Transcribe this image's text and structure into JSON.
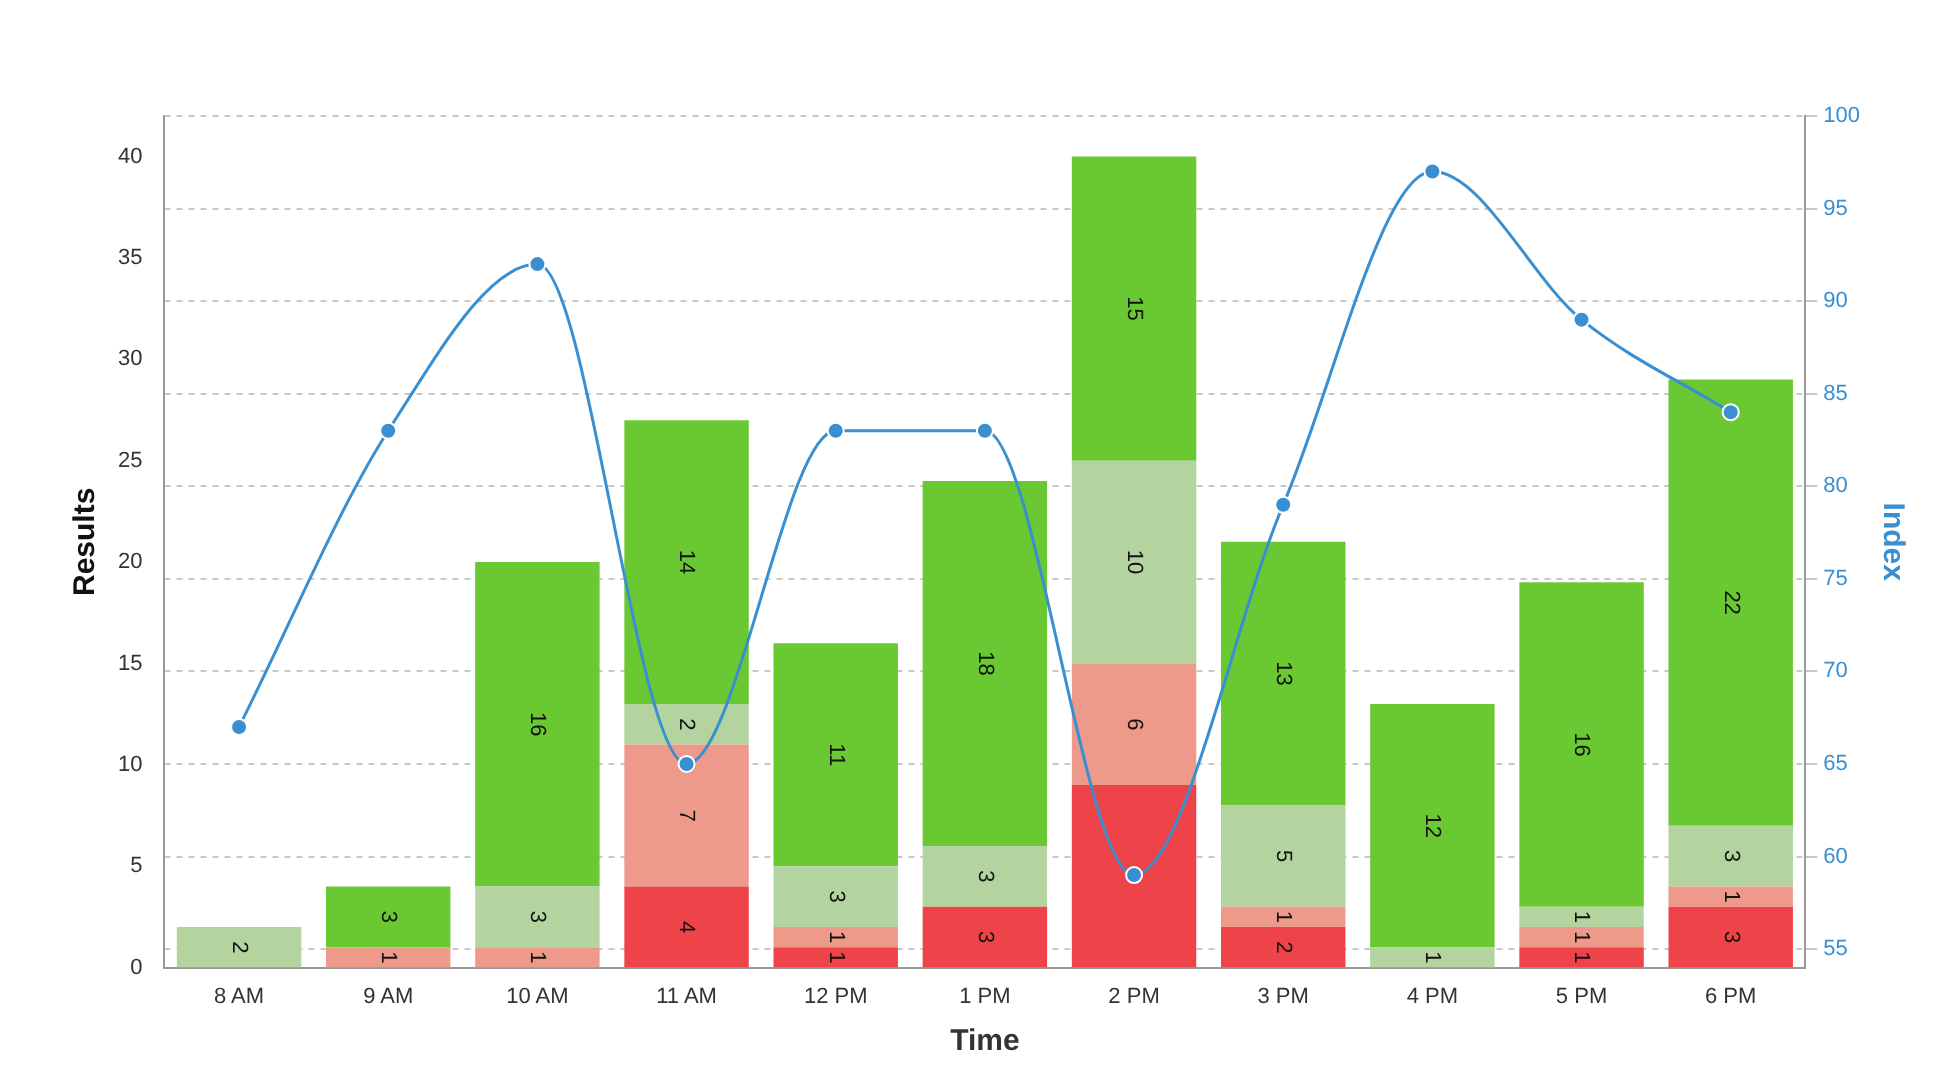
{
  "chart_data": {
    "type": "bar",
    "stacked": true,
    "xlabel": "Time",
    "ylabel": "Results",
    "y2label": "Index",
    "categories": [
      "8 AM",
      "9 AM",
      "10 AM",
      "11 AM",
      "12 PM",
      "1 PM",
      "2 PM",
      "3 PM",
      "4 PM",
      "5 PM",
      "6 PM"
    ],
    "series": [
      {
        "color": "#ee4449",
        "values": [
          null,
          null,
          null,
          4,
          1,
          3,
          9,
          2,
          null,
          1,
          3
        ],
        "value_labels": [
          null,
          null,
          null,
          "4",
          "1",
          "3",
          null,
          "2",
          null,
          "1",
          "3"
        ]
      },
      {
        "color": "#ee9a8a",
        "values": [
          null,
          1,
          1,
          7,
          1,
          null,
          6,
          1,
          null,
          1,
          1
        ],
        "value_labels": [
          null,
          "1",
          "1",
          "7",
          "1",
          null,
          "6",
          "1",
          null,
          "1",
          "1"
        ]
      },
      {
        "color": "#b3d49f",
        "values": [
          2,
          null,
          3,
          2,
          3,
          3,
          10,
          5,
          1,
          1,
          3
        ],
        "value_labels": [
          "2",
          null,
          "3",
          "2",
          "3",
          "3",
          "10",
          "5",
          "1",
          "1",
          "3"
        ]
      },
      {
        "color": "#6ac832",
        "values": [
          null,
          3,
          16,
          14,
          11,
          18,
          15,
          13,
          12,
          16,
          22
        ],
        "value_labels": [
          null,
          "3",
          "16",
          "14",
          "11",
          "18",
          "15",
          "13",
          "12",
          "16",
          "22"
        ]
      },
      {
        "type": "line",
        "axis": "y2",
        "color": "#3a8fd0",
        "values": [
          67,
          83,
          92,
          65,
          83,
          83,
          59,
          79,
          97,
          89,
          84
        ]
      }
    ],
    "marker": "circle",
    "grid": "y2",
    "legend": false,
    "ylim": [
      0,
      42
    ],
    "yticks": [
      0,
      5,
      10,
      15,
      20,
      25,
      30,
      35,
      40
    ],
    "y2lim": [
      54,
      100
    ],
    "y2ticks": [
      55,
      60,
      65,
      70,
      75,
      80,
      85,
      90,
      95,
      100
    ]
  }
}
